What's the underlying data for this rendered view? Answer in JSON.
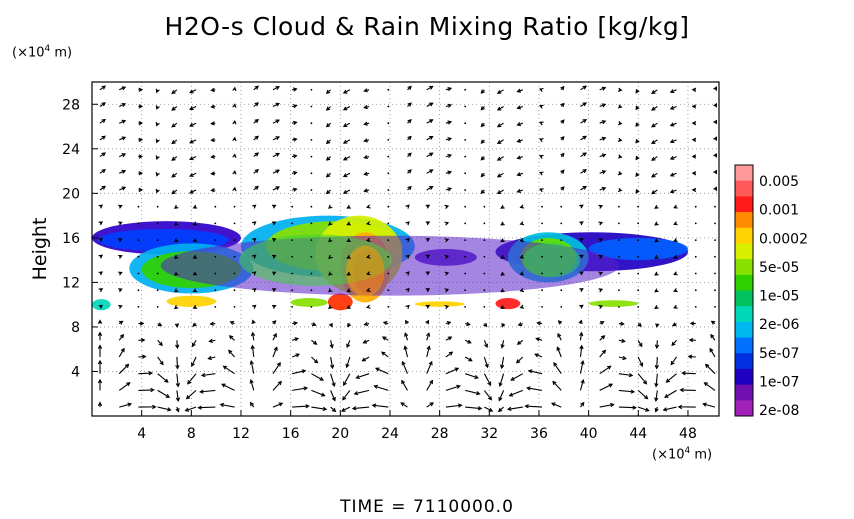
{
  "chart_data": {
    "type": "heatmap",
    "title": "H2O-s Cloud & Rain Mixing Ratio [kg/kg]",
    "xlabel": "",
    "ylabel": "Height",
    "x_unit": "(×10⁴ m)",
    "y_unit": "(×10⁴ m)",
    "xlim": [
      0,
      50.5
    ],
    "ylim": [
      0,
      30
    ],
    "x_ticks": [
      4,
      8,
      12,
      16,
      20,
      24,
      28,
      32,
      36,
      40,
      44,
      48
    ],
    "y_ticks": [
      4,
      8,
      12,
      16,
      20,
      24,
      28
    ],
    "grid": true,
    "overlay": "velocity vectors",
    "colorbar": {
      "scale": "log",
      "labels": [
        "0.005",
        "0.001",
        "0.0002",
        "5e-05",
        "1e-05",
        "2e-06",
        "5e-07",
        "1e-07",
        "2e-08"
      ],
      "colors": [
        "#ff9a9a",
        "#ff5a5a",
        "#ff1a1a",
        "#ff8c00",
        "#ffd200",
        "#d8f000",
        "#88e000",
        "#30d000",
        "#00c060",
        "#00d8b8",
        "#00b8f0",
        "#0070ff",
        "#0030e0",
        "#2000c0",
        "#7010b0",
        "#a020b8"
      ]
    },
    "regions": [
      {
        "level": "2e-08",
        "x": [
          0,
          48
        ],
        "y": [
          10,
          17
        ]
      },
      {
        "level": "5e-05",
        "x": [
          10,
          26
        ],
        "y": [
          11,
          17
        ]
      },
      {
        "level": "0.0002",
        "x": [
          20,
          24
        ],
        "y": [
          10,
          16
        ]
      },
      {
        "level": "1e-05",
        "x": [
          34,
          40
        ],
        "y": [
          12,
          16
        ]
      },
      {
        "level": "0.001",
        "x": [
          33,
          34
        ],
        "y": [
          9.5,
          10.5
        ]
      }
    ]
  },
  "labels": {
    "time": "TIME = 7110000.0",
    "x_unit_text": "(×10",
    "x_unit_exp": "4",
    "x_unit_tail": " m)",
    "y_unit_text": "(×10",
    "y_unit_exp": "4",
    "y_unit_tail": " m)"
  }
}
